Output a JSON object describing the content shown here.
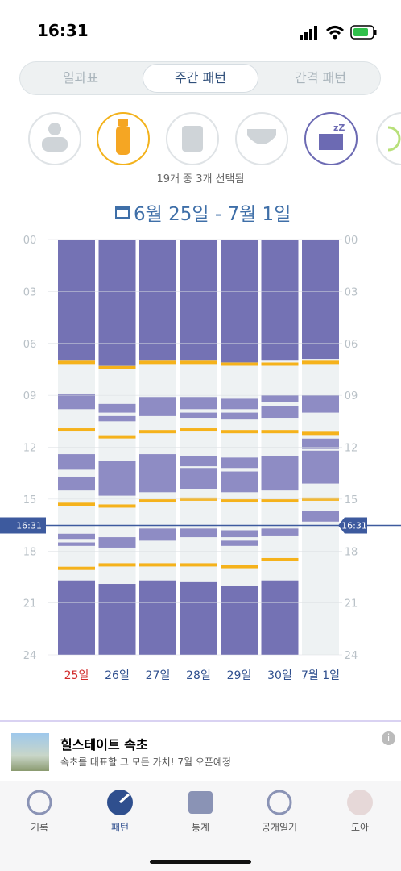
{
  "status_bar": {
    "time": "16:31"
  },
  "tabs": [
    "일과표",
    "주간 패턴",
    "간격 패턴"
  ],
  "selection_note": "19개 중 3개 선택됨",
  "date_range": "6월 25일 - 7월 1일",
  "pattern": {
    "hour_ticks": [
      {
        "value": 0,
        "label": "00"
      },
      {
        "value": 3,
        "label": "03"
      },
      {
        "value": 6,
        "label": "06"
      },
      {
        "value": 9,
        "label": "09"
      },
      {
        "value": 12,
        "label": "12"
      },
      {
        "value": 15,
        "label": "15"
      },
      {
        "value": 18,
        "label": "18"
      },
      {
        "value": 21,
        "label": "21"
      },
      {
        "value": 24,
        "label": "24"
      }
    ],
    "hour_range": [
      0,
      24
    ],
    "now": {
      "value": 16.52,
      "label": "16:31"
    },
    "days": [
      {
        "label": "25일",
        "sleep": [
          [
            0,
            7.0
          ],
          [
            8.9,
            9.8
          ],
          [
            12.4,
            13.3
          ],
          [
            13.7,
            14.5
          ],
          [
            17.0,
            17.3
          ],
          [
            17.5,
            17.7
          ],
          [
            19.7,
            24
          ]
        ],
        "feeds": [
          7.1,
          11.0,
          15.3,
          19.0
        ]
      },
      {
        "label": "26일",
        "sleep": [
          [
            0,
            7.3
          ],
          [
            9.5,
            10.0
          ],
          [
            10.2,
            10.5
          ],
          [
            12.8,
            14.8
          ],
          [
            17.2,
            17.8
          ],
          [
            19.9,
            24
          ]
        ],
        "feeds": [
          7.4,
          11.4,
          15.4,
          18.8
        ]
      },
      {
        "label": "27일",
        "sleep": [
          [
            0,
            7.0
          ],
          [
            9.1,
            10.2
          ],
          [
            12.4,
            14.6
          ],
          [
            16.7,
            17.4
          ],
          [
            19.7,
            24
          ]
        ],
        "feeds": [
          7.1,
          11.1,
          15.1,
          18.8
        ]
      },
      {
        "label": "28일",
        "sleep": [
          [
            0,
            7.0
          ],
          [
            9.1,
            9.8
          ],
          [
            10.0,
            10.3
          ],
          [
            12.5,
            13.1
          ],
          [
            13.2,
            14.4
          ],
          [
            16.7,
            17.2
          ],
          [
            19.8,
            24
          ]
        ],
        "feeds": [
          7.1,
          11.0,
          15.0,
          18.8
        ]
      },
      {
        "label": "29일",
        "sleep": [
          [
            0,
            7.1
          ],
          [
            9.2,
            9.8
          ],
          [
            10.0,
            10.4
          ],
          [
            12.6,
            13.2
          ],
          [
            13.4,
            14.6
          ],
          [
            16.8,
            17.2
          ],
          [
            17.4,
            17.7
          ],
          [
            20.0,
            24
          ]
        ],
        "feeds": [
          7.2,
          11.1,
          15.1,
          18.9
        ]
      },
      {
        "label": "30일",
        "sleep": [
          [
            0,
            7.0
          ],
          [
            9.0,
            9.4
          ],
          [
            9.6,
            10.3
          ],
          [
            12.5,
            14.5
          ],
          [
            16.7,
            17.1
          ],
          [
            19.7,
            24
          ]
        ],
        "feeds": [
          7.2,
          11.1,
          15.1,
          18.5
        ]
      },
      {
        "label": "7월 1일",
        "sleep": [
          [
            0,
            6.9
          ],
          [
            9.0,
            10.0
          ],
          [
            11.5,
            12.1
          ],
          [
            12.2,
            14.1
          ],
          [
            15.7,
            16.3
          ]
        ],
        "feeds": [
          7.1,
          11.2,
          15.0
        ]
      }
    ]
  },
  "ad": {
    "title": "힐스테이트 속초",
    "description": "속초를 대표할 그 모든 가치! 7월 오픈예정"
  },
  "nav": [
    "기록",
    "패턴",
    "통계",
    "공개일기",
    "도아"
  ]
}
